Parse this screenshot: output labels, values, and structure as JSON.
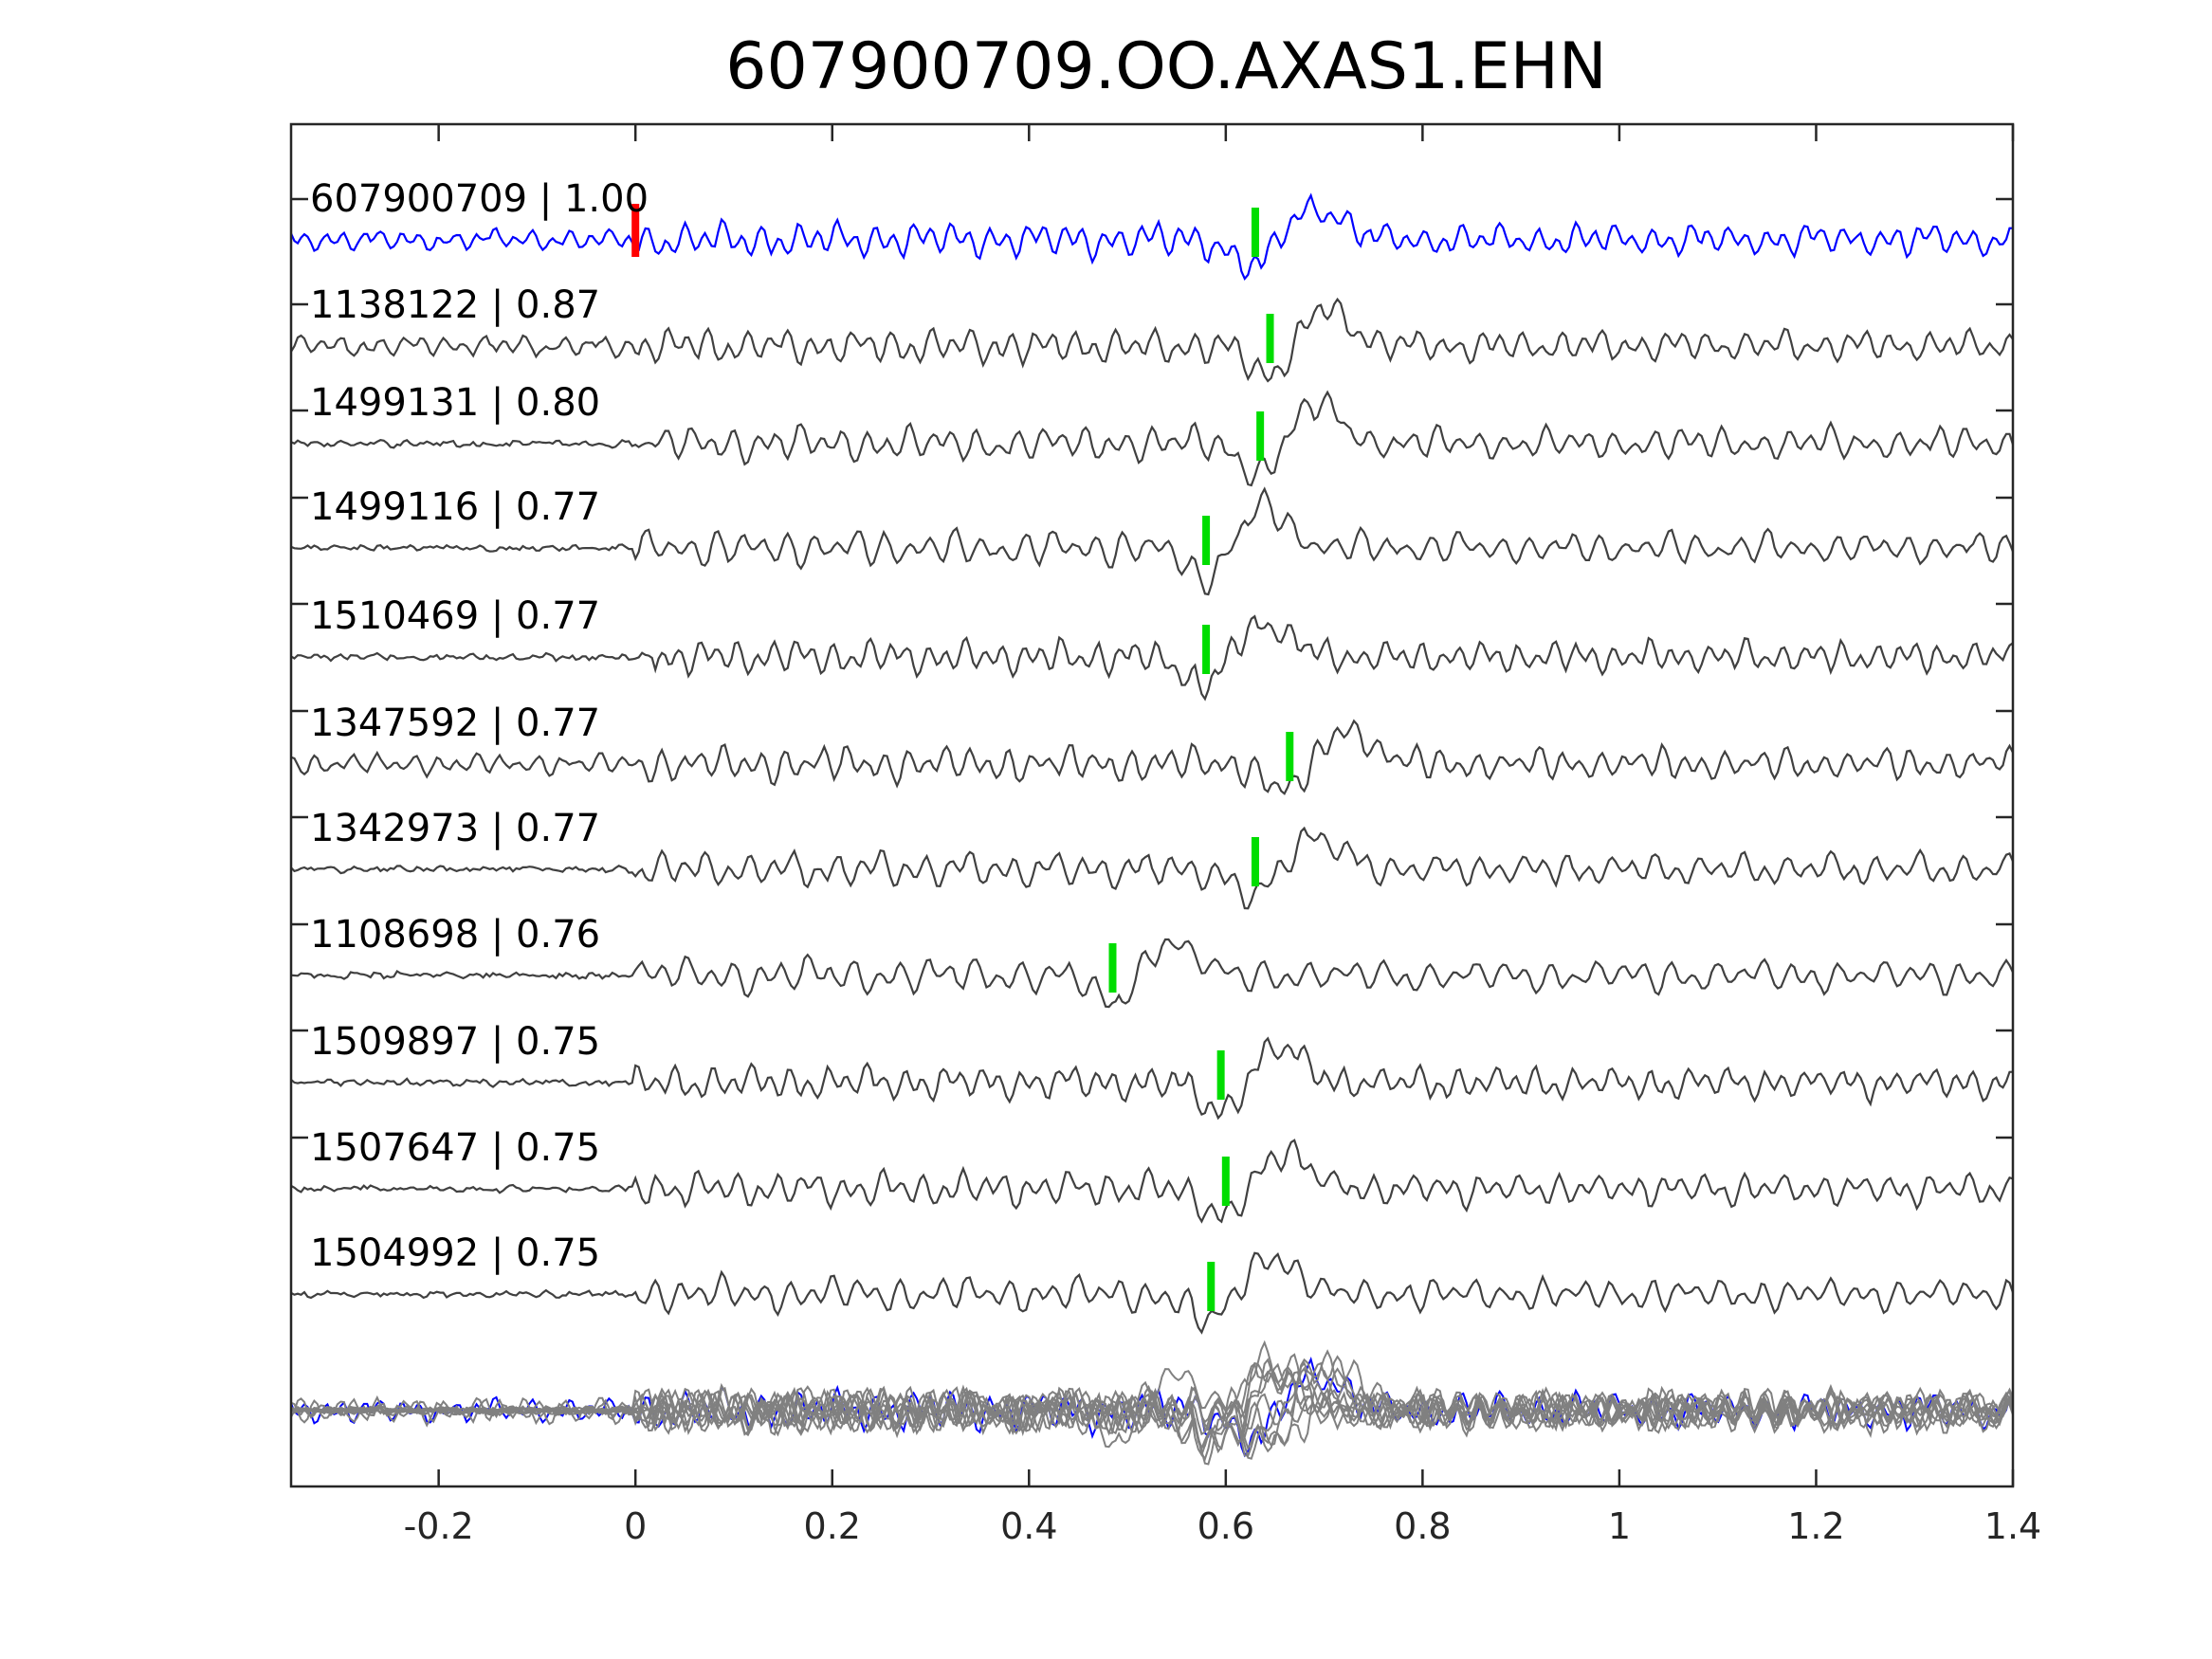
{
  "chart_data": {
    "type": "line",
    "title": "607900709.OO.AXAS1.EHN",
    "xlabel": "",
    "ylabel": "",
    "xlim": [
      -0.35,
      1.4
    ],
    "x_ticks": [
      -0.2,
      0,
      0.2,
      0.4,
      0.6,
      0.8,
      1,
      1.2,
      1.4
    ],
    "x_tick_labels": [
      "-0.2",
      "0",
      "0.2",
      "0.4",
      "0.6",
      "0.8",
      "1",
      "1.2",
      "1.4"
    ],
    "grid": false,
    "legend": "none",
    "colors": {
      "template": "#0000ff",
      "match": "#404040",
      "stack": "#808080",
      "template_pick": "#ff0000",
      "detection_pick": "#00dd00",
      "axes": "#262626"
    },
    "template_pick_time": 0.0,
    "series": [
      {
        "name": "607900709",
        "label": "607900709 | 1.00",
        "cc": 1.0,
        "pick_time": 0.63,
        "onset": 0.0
      },
      {
        "name": "1138122",
        "label": "1138122 | 0.87",
        "cc": 0.87,
        "pick_time": 0.645,
        "onset": 0.0
      },
      {
        "name": "1499131",
        "label": "1499131 | 0.80",
        "cc": 0.8,
        "pick_time": 0.635,
        "onset": 0.02
      },
      {
        "name": "1499116",
        "label": "1499116 | 0.77",
        "cc": 0.77,
        "pick_time": 0.58,
        "onset": 0.0
      },
      {
        "name": "1510469",
        "label": "1510469 | 0.77",
        "cc": 0.77,
        "pick_time": 0.58,
        "onset": 0.02
      },
      {
        "name": "1347592",
        "label": "1347592 | 0.77",
        "cc": 0.77,
        "pick_time": 0.665,
        "onset": 0.0
      },
      {
        "name": "1342973",
        "label": "1342973 | 0.77",
        "cc": 0.77,
        "pick_time": 0.63,
        "onset": 0.0
      },
      {
        "name": "1108698",
        "label": "1108698 | 0.76",
        "cc": 0.76,
        "pick_time": 0.485,
        "onset": 0.0
      },
      {
        "name": "1509897",
        "label": "1509897 | 0.75",
        "cc": 0.75,
        "pick_time": 0.595,
        "onset": 0.0
      },
      {
        "name": "1507647",
        "label": "1507647 | 0.75",
        "cc": 0.75,
        "pick_time": 0.6,
        "onset": 0.0
      },
      {
        "name": "1504992",
        "label": "1504992 | 0.75",
        "cc": 0.75,
        "pick_time": 0.585,
        "onset": 0.0
      }
    ]
  }
}
